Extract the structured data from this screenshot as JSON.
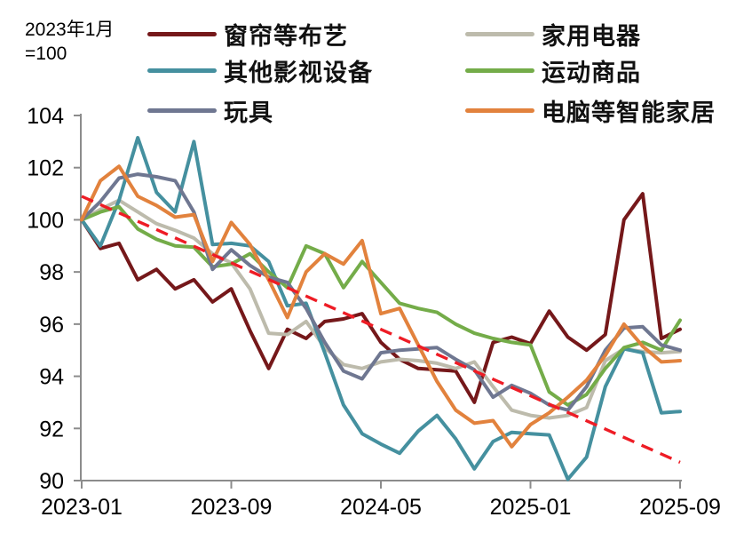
{
  "note": {
    "line1": "2023年1月",
    "line2": "=100"
  },
  "legend": {
    "order": [
      0,
      1,
      2,
      3,
      4,
      5
    ]
  },
  "chart_data": {
    "type": "line",
    "title": "",
    "xlabel": "",
    "ylabel": "",
    "index_note": "2023年1月=100",
    "ylim": [
      90,
      104
    ],
    "yticks": [
      90,
      92,
      94,
      96,
      98,
      100,
      102,
      104
    ],
    "x_tick_labels": [
      "2023-01",
      "2023-09",
      "2024-05",
      "2025-01",
      "2025-09"
    ],
    "x_tick_months": [
      0,
      8,
      16,
      24,
      32
    ],
    "grid": false,
    "legend_position": "top",
    "x": [
      "2023-01",
      "2023-02",
      "2023-03",
      "2023-04",
      "2023-05",
      "2023-06",
      "2023-07",
      "2023-08",
      "2023-09",
      "2023-10",
      "2023-11",
      "2023-12",
      "2024-01",
      "2024-02",
      "2024-03",
      "2024-04",
      "2024-05",
      "2024-06",
      "2024-07",
      "2024-08",
      "2024-09",
      "2024-10",
      "2024-11",
      "2024-12",
      "2025-01",
      "2025-02",
      "2025-03",
      "2025-04",
      "2025-05",
      "2025-06",
      "2025-07",
      "2025-08",
      "2025-09"
    ],
    "series": [
      {
        "id": "curtains-fabric",
        "name": "窗帘等布艺",
        "color": "#75181a",
        "values": [
          100,
          98.9,
          99.1,
          97.7,
          98.1,
          97.35,
          97.7,
          96.85,
          97.35,
          95.75,
          94.3,
          95.8,
          95.45,
          96.1,
          96.2,
          96.4,
          95.3,
          94.65,
          94.3,
          94.25,
          94.2,
          93.0,
          95.3,
          95.5,
          95.25,
          96.5,
          95.5,
          95.0,
          95.6,
          100.0,
          101.0,
          95.45,
          95.8
        ]
      },
      {
        "id": "home-appliances",
        "name": "家用电器",
        "color": "#bdbbac",
        "values": [
          100,
          100.4,
          100.75,
          100.3,
          99.85,
          99.6,
          99.3,
          98.7,
          98.35,
          97.35,
          95.65,
          95.6,
          96.1,
          95.1,
          94.45,
          94.3,
          94.55,
          94.65,
          94.6,
          94.5,
          94.3,
          94.55,
          93.6,
          92.7,
          92.5,
          92.4,
          92.5,
          92.8,
          94.6,
          95.05,
          94.95,
          94.9,
          94.95
        ]
      },
      {
        "id": "other-video-equipment",
        "name": "其他影视设备",
        "color": "#45909f",
        "values": [
          100,
          99.0,
          100.75,
          103.15,
          101.05,
          100.3,
          103.0,
          99.05,
          99.1,
          99.0,
          98.4,
          96.7,
          96.8,
          94.9,
          92.9,
          91.8,
          91.4,
          91.05,
          91.9,
          92.5,
          91.6,
          90.45,
          91.5,
          91.85,
          91.8,
          91.75,
          90.05,
          90.9,
          93.6,
          95.05,
          94.9,
          92.6,
          92.65
        ]
      },
      {
        "id": "sports-goods",
        "name": "运动商品",
        "color": "#74ac49",
        "values": [
          100,
          100.3,
          100.5,
          99.65,
          99.25,
          99.0,
          98.95,
          98.2,
          98.3,
          98.7,
          98.0,
          97.4,
          99.0,
          98.7,
          97.4,
          98.4,
          97.6,
          96.8,
          96.6,
          96.45,
          96.0,
          95.65,
          95.45,
          95.3,
          95.2,
          93.4,
          92.9,
          93.3,
          94.3,
          95.1,
          95.3,
          95.0,
          96.15
        ]
      },
      {
        "id": "toys",
        "name": "玩具",
        "color": "#6f7791",
        "values": [
          100,
          100.7,
          101.6,
          101.75,
          101.65,
          101.5,
          100.3,
          98.1,
          98.85,
          98.25,
          97.8,
          97.6,
          96.6,
          95.3,
          94.2,
          93.9,
          94.9,
          95.0,
          95.05,
          95.1,
          94.65,
          94.25,
          93.2,
          93.65,
          93.35,
          92.9,
          92.7,
          93.6,
          95.0,
          95.85,
          95.9,
          95.2,
          95.0
        ]
      },
      {
        "id": "smart-home-computers",
        "name": "电脑等智能家居",
        "color": "#e2823d",
        "values": [
          100,
          101.5,
          102.05,
          100.9,
          100.55,
          100.1,
          100.2,
          98.4,
          99.9,
          99.05,
          97.7,
          96.25,
          98.0,
          98.7,
          98.3,
          99.2,
          96.4,
          96.6,
          95.2,
          93.8,
          92.7,
          92.2,
          92.3,
          91.3,
          92.15,
          92.6,
          93.2,
          93.85,
          94.8,
          96.0,
          95.15,
          94.55,
          94.6
        ]
      }
    ],
    "trendline": {
      "id": "trend-dashed",
      "color": "#ee1c25",
      "style": "dashed",
      "from": {
        "month": 0,
        "value": 100.9
      },
      "to": {
        "month": 32,
        "value": 90.7
      }
    },
    "axis_color": "#8c8c8c",
    "text_color": "#000000"
  }
}
